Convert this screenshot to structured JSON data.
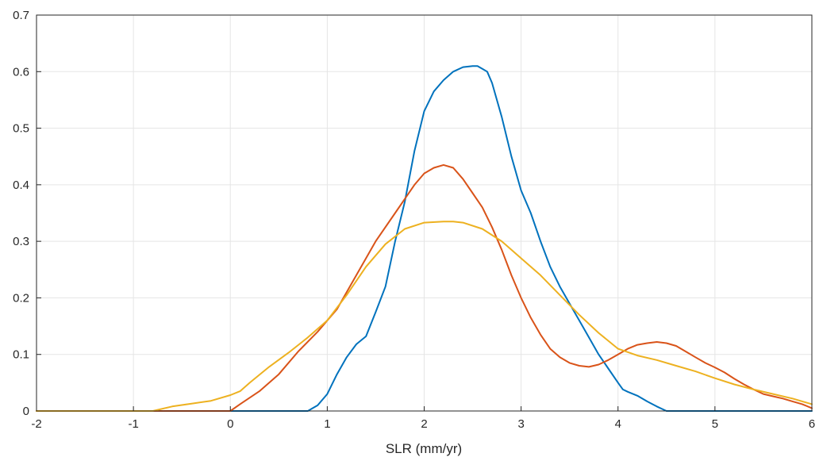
{
  "chart_data": {
    "type": "line",
    "title": "",
    "xlabel": "SLR (mm/yr)",
    "ylabel": "",
    "xlim": [
      -2,
      6
    ],
    "ylim": [
      0,
      0.7
    ],
    "xticks": [
      -2,
      -1,
      0,
      1,
      2,
      3,
      4,
      5,
      6
    ],
    "xtick_labels": [
      "-2",
      "-1",
      "0",
      "1",
      "2",
      "3",
      "4",
      "5",
      "6"
    ],
    "yticks": [
      0,
      0.1,
      0.2,
      0.3,
      0.4,
      0.5,
      0.6,
      0.7
    ],
    "ytick_labels": [
      "0",
      "0.1",
      "0.2",
      "0.3",
      "0.4",
      "0.5",
      "0.6",
      "0.7"
    ],
    "grid": true,
    "legend": "none",
    "colors": {
      "blue": "#0072BD",
      "orange": "#D95319",
      "yellow": "#EDB120",
      "grid": "#e5e5e5",
      "axis": "#262626"
    },
    "series": [
      {
        "color": "#0072BD",
        "x": [
          -2,
          0.8,
          0.85,
          0.9,
          1.0,
          1.1,
          1.2,
          1.3,
          1.4,
          1.5,
          1.6,
          1.7,
          1.8,
          1.9,
          2.0,
          2.1,
          2.2,
          2.3,
          2.4,
          2.5,
          2.55,
          2.6,
          2.65,
          2.7,
          2.8,
          2.9,
          3.0,
          3.1,
          3.2,
          3.3,
          3.4,
          3.5,
          3.6,
          3.7,
          3.8,
          3.9,
          4.0,
          4.05,
          4.1,
          4.2,
          4.3,
          4.4,
          4.5,
          6
        ],
        "y": [
          0,
          0,
          0.005,
          0.01,
          0.03,
          0.065,
          0.095,
          0.118,
          0.132,
          0.175,
          0.22,
          0.3,
          0.37,
          0.46,
          0.53,
          0.565,
          0.585,
          0.6,
          0.608,
          0.61,
          0.61,
          0.605,
          0.6,
          0.58,
          0.52,
          0.45,
          0.39,
          0.35,
          0.3,
          0.255,
          0.22,
          0.19,
          0.16,
          0.13,
          0.1,
          0.075,
          0.05,
          0.038,
          0.034,
          0.027,
          0.017,
          0.008,
          0,
          0
        ]
      },
      {
        "color": "#D95319",
        "x": [
          -2,
          0,
          0.1,
          0.3,
          0.5,
          0.7,
          0.9,
          1.1,
          1.3,
          1.5,
          1.7,
          1.8,
          1.9,
          2.0,
          2.1,
          2.2,
          2.3,
          2.4,
          2.5,
          2.6,
          2.7,
          2.8,
          2.9,
          3.0,
          3.1,
          3.2,
          3.3,
          3.4,
          3.5,
          3.6,
          3.7,
          3.8,
          3.9,
          4.0,
          4.1,
          4.2,
          4.3,
          4.4,
          4.5,
          4.6,
          4.7,
          4.8,
          4.9,
          5.0,
          5.1,
          5.2,
          5.3,
          5.4,
          5.5,
          5.6,
          5.7,
          5.8,
          5.9,
          6.0
        ],
        "y": [
          0,
          0,
          0.012,
          0.035,
          0.065,
          0.105,
          0.14,
          0.18,
          0.24,
          0.3,
          0.35,
          0.375,
          0.4,
          0.42,
          0.43,
          0.435,
          0.43,
          0.41,
          0.385,
          0.36,
          0.325,
          0.285,
          0.24,
          0.2,
          0.165,
          0.135,
          0.11,
          0.095,
          0.085,
          0.08,
          0.078,
          0.082,
          0.09,
          0.1,
          0.11,
          0.117,
          0.12,
          0.122,
          0.12,
          0.115,
          0.105,
          0.095,
          0.085,
          0.077,
          0.068,
          0.057,
          0.047,
          0.038,
          0.03,
          0.026,
          0.022,
          0.017,
          0.012,
          0.005
        ]
      },
      {
        "color": "#EDB120",
        "x": [
          -2,
          -0.8,
          -0.6,
          -0.4,
          -0.2,
          0.0,
          0.1,
          0.2,
          0.4,
          0.6,
          0.8,
          1.0,
          1.2,
          1.4,
          1.6,
          1.8,
          2.0,
          2.2,
          2.3,
          2.4,
          2.6,
          2.8,
          3.0,
          3.2,
          3.4,
          3.6,
          3.8,
          4.0,
          4.2,
          4.4,
          4.6,
          4.8,
          5.0,
          5.2,
          5.4,
          5.6,
          5.8,
          6.0
        ],
        "y": [
          0,
          0,
          0.008,
          0.013,
          0.018,
          0.028,
          0.035,
          0.05,
          0.078,
          0.103,
          0.13,
          0.16,
          0.205,
          0.255,
          0.295,
          0.322,
          0.333,
          0.335,
          0.335,
          0.333,
          0.322,
          0.3,
          0.27,
          0.24,
          0.205,
          0.17,
          0.138,
          0.11,
          0.098,
          0.09,
          0.08,
          0.07,
          0.058,
          0.047,
          0.038,
          0.03,
          0.022,
          0.012
        ]
      }
    ]
  }
}
